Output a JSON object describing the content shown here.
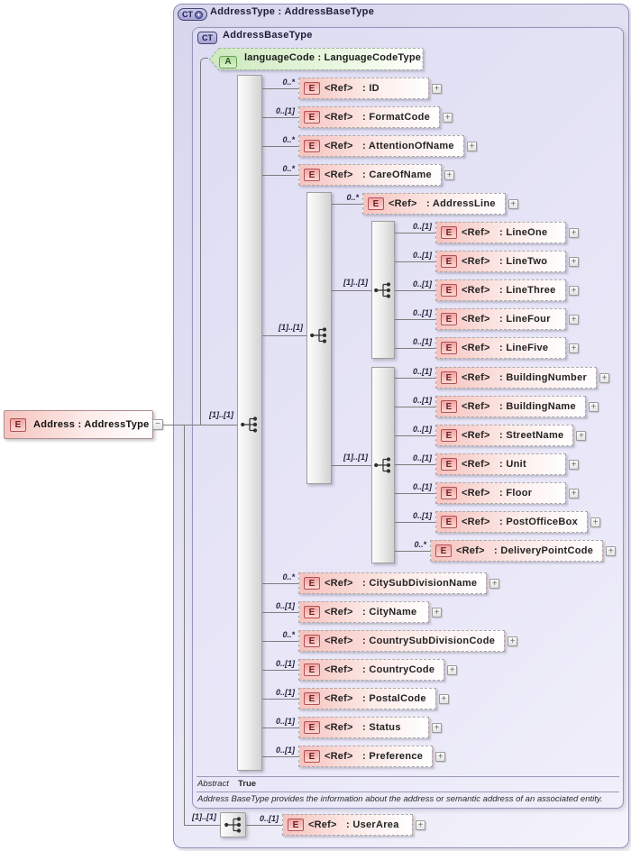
{
  "diagram": {
    "complex_type": {
      "badge": "CT",
      "modifier": "+",
      "title": "AddressType : AddressBaseType"
    },
    "base_type": {
      "badge": "CT",
      "title": "AddressBaseType"
    },
    "attribute": {
      "badge": "A",
      "label": "languageCode : LanguageCodeType"
    },
    "root_element": {
      "badge": "E",
      "label": "Address : AddressType",
      "collapse_glyph": "−"
    },
    "abstract_row": {
      "label": "Abstract",
      "value": "True"
    },
    "description": "Address BaseType provides the information about the address or semantic address of an associated entity.",
    "expander_glyph": "+",
    "sequences": [
      {
        "id": "base-sequence",
        "cardinality": "[1]..[1]"
      },
      {
        "id": "address-line-group",
        "cardinality": "[1]..[1]"
      },
      {
        "id": "line-group",
        "cardinality": "[1]..[1]"
      },
      {
        "id": "street-group",
        "cardinality": "[1]..[1]"
      },
      {
        "id": "extension-sequence",
        "cardinality": "[1]..[1]"
      }
    ],
    "elements": [
      {
        "badge": "E",
        "ref": "<Ref>",
        "name": ": ID",
        "cardinality": "0..*"
      },
      {
        "badge": "E",
        "ref": "<Ref>",
        "name": ": FormatCode",
        "cardinality": "0..[1]"
      },
      {
        "badge": "E",
        "ref": "<Ref>",
        "name": ": AttentionOfName",
        "cardinality": "0..*"
      },
      {
        "badge": "E",
        "ref": "<Ref>",
        "name": ": CareOfName",
        "cardinality": "0..*"
      },
      {
        "badge": "E",
        "ref": "<Ref>",
        "name": ": AddressLine",
        "cardinality": "0..*"
      },
      {
        "badge": "E",
        "ref": "<Ref>",
        "name": ": LineOne",
        "cardinality": "0..[1]"
      },
      {
        "badge": "E",
        "ref": "<Ref>",
        "name": ": LineTwo",
        "cardinality": "0..[1]"
      },
      {
        "badge": "E",
        "ref": "<Ref>",
        "name": ": LineThree",
        "cardinality": "0..[1]"
      },
      {
        "badge": "E",
        "ref": "<Ref>",
        "name": ": LineFour",
        "cardinality": "0..[1]"
      },
      {
        "badge": "E",
        "ref": "<Ref>",
        "name": ": LineFive",
        "cardinality": "0..[1]"
      },
      {
        "badge": "E",
        "ref": "<Ref>",
        "name": ": BuildingNumber",
        "cardinality": "0..[1]"
      },
      {
        "badge": "E",
        "ref": "<Ref>",
        "name": ": BuildingName",
        "cardinality": "0..[1]"
      },
      {
        "badge": "E",
        "ref": "<Ref>",
        "name": ": StreetName",
        "cardinality": "0..[1]"
      },
      {
        "badge": "E",
        "ref": "<Ref>",
        "name": ": Unit",
        "cardinality": "0..[1]"
      },
      {
        "badge": "E",
        "ref": "<Ref>",
        "name": ": Floor",
        "cardinality": "0..[1]"
      },
      {
        "badge": "E",
        "ref": "<Ref>",
        "name": ": PostOfficeBox",
        "cardinality": "0..[1]"
      },
      {
        "badge": "E",
        "ref": "<Ref>",
        "name": ": DeliveryPointCode",
        "cardinality": "0..*"
      },
      {
        "badge": "E",
        "ref": "<Ref>",
        "name": ": CitySubDivisionName",
        "cardinality": "0..*"
      },
      {
        "badge": "E",
        "ref": "<Ref>",
        "name": ": CityName",
        "cardinality": "0..[1]"
      },
      {
        "badge": "E",
        "ref": "<Ref>",
        "name": ": CountrySubDivisionCode",
        "cardinality": "0..*"
      },
      {
        "badge": "E",
        "ref": "<Ref>",
        "name": ": CountryCode",
        "cardinality": "0..[1]"
      },
      {
        "badge": "E",
        "ref": "<Ref>",
        "name": ": PostalCode",
        "cardinality": "0..[1]"
      },
      {
        "badge": "E",
        "ref": "<Ref>",
        "name": ": Status",
        "cardinality": "0..[1]"
      },
      {
        "badge": "E",
        "ref": "<Ref>",
        "name": ": Preference",
        "cardinality": "0..[1]"
      },
      {
        "badge": "E",
        "ref": "<Ref>",
        "name": ": UserArea",
        "cardinality": "0..[1]"
      }
    ]
  }
}
